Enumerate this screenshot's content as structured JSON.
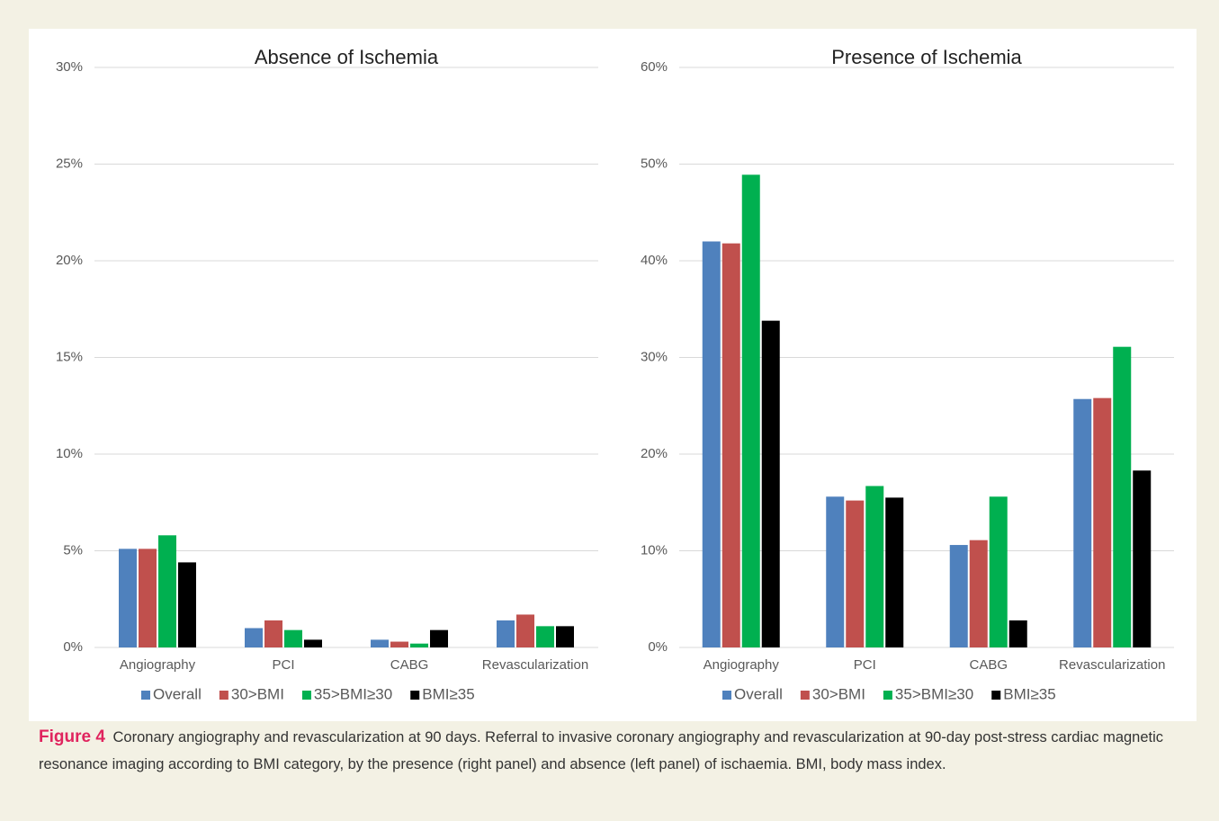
{
  "chart_data": [
    {
      "type": "bar",
      "title": "Absence of Ischemia",
      "categories": [
        "Angiography",
        "PCI",
        "CABG",
        "Revascularization"
      ],
      "series": [
        {
          "name": "Overall",
          "color": "#4f81bd",
          "values": [
            5.1,
            1.0,
            0.4,
            1.4
          ]
        },
        {
          "name": "30>BMI",
          "color": "#c0504d",
          "values": [
            5.1,
            1.4,
            0.3,
            1.7
          ]
        },
        {
          "name": "35>BMI≥30",
          "color": "#00b050",
          "values": [
            5.8,
            0.9,
            0.2,
            1.1
          ]
        },
        {
          "name": "BMI≥35",
          "color": "#000000",
          "values": [
            4.4,
            0.4,
            0.9,
            1.1
          ]
        }
      ],
      "ylim": [
        0,
        30
      ],
      "yticks": [
        {
          "value": 0,
          "label": "0%"
        },
        {
          "value": 5,
          "label": "5%"
        },
        {
          "value": 10,
          "label": "10%"
        },
        {
          "value": 15,
          "label": "15%"
        },
        {
          "value": 20,
          "label": "20%"
        },
        {
          "value": 25,
          "label": "25%"
        },
        {
          "value": 30,
          "label": "30%"
        }
      ],
      "grid": true,
      "legend": "bottom"
    },
    {
      "type": "bar",
      "title": "Presence of Ischemia",
      "categories": [
        "Angiography",
        "PCI",
        "CABG",
        "Revascularization"
      ],
      "series": [
        {
          "name": "Overall",
          "color": "#4f81bd",
          "values": [
            42.0,
            15.6,
            10.6,
            25.7
          ]
        },
        {
          "name": "30>BMI",
          "color": "#c0504d",
          "values": [
            41.8,
            15.2,
            11.1,
            25.8
          ]
        },
        {
          "name": "35>BMI≥30",
          "color": "#00b050",
          "values": [
            48.9,
            16.7,
            15.6,
            31.1
          ]
        },
        {
          "name": "BMI≥35",
          "color": "#000000",
          "values": [
            33.8,
            15.5,
            2.8,
            18.3
          ]
        }
      ],
      "ylim": [
        0,
        60
      ],
      "yticks": [
        {
          "value": 0,
          "label": "0%"
        },
        {
          "value": 10,
          "label": "10%"
        },
        {
          "value": 20,
          "label": "20%"
        },
        {
          "value": 30,
          "label": "30%"
        },
        {
          "value": 40,
          "label": "40%"
        },
        {
          "value": 50,
          "label": "50%"
        },
        {
          "value": 60,
          "label": "60%"
        }
      ],
      "grid": true,
      "legend": "bottom"
    }
  ],
  "caption": {
    "label": "Figure 4",
    "text": "Coronary angiography and revascularization at 90 days. Referral to invasive coronary angiography and revascularization at 90-day post-stress cardiac magnetic resonance imaging according to BMI category, by the presence (right panel) and absence (left panel) of ischaemia. BMI, body mass index."
  }
}
